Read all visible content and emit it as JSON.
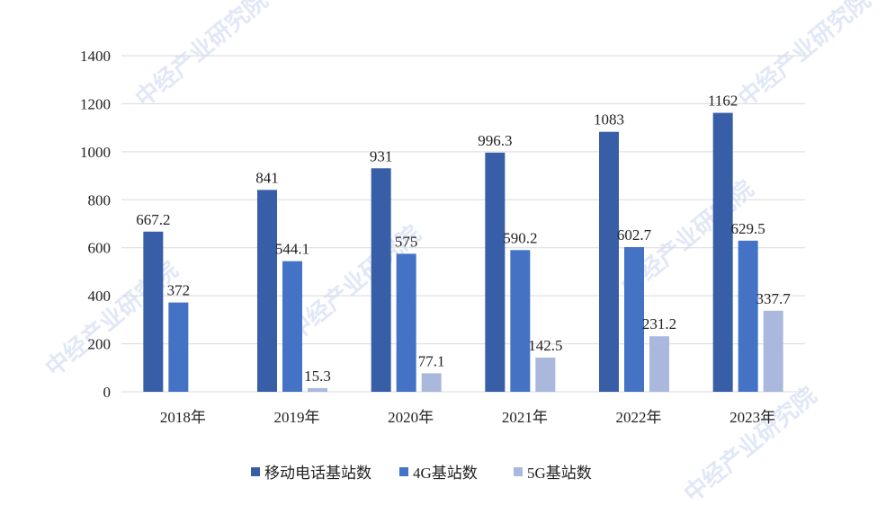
{
  "chart_data": {
    "type": "bar",
    "title": "",
    "xlabel": "",
    "ylabel": "",
    "categories": [
      "2018年",
      "2019年",
      "2020年",
      "2021年",
      "2022年",
      "2023年"
    ],
    "series": [
      {
        "name": "移动电话基站数",
        "color": "#375ea6",
        "values": [
          667.2,
          841,
          931,
          996.3,
          1083,
          1162
        ]
      },
      {
        "name": "4G基站数",
        "color": "#4472c4",
        "values": [
          372,
          544.1,
          575,
          590.2,
          602.7,
          629.5
        ]
      },
      {
        "name": "5G基站数",
        "color": "#a9b8dc",
        "values": [
          null,
          15.3,
          77.1,
          142.5,
          231.2,
          337.7
        ]
      }
    ],
    "ylim": [
      0,
      1400
    ],
    "yticks": [
      0,
      200,
      400,
      600,
      800,
      1000,
      1200,
      1400
    ],
    "grid": true,
    "legend": "bottom",
    "watermark": "中经产业研究院"
  }
}
